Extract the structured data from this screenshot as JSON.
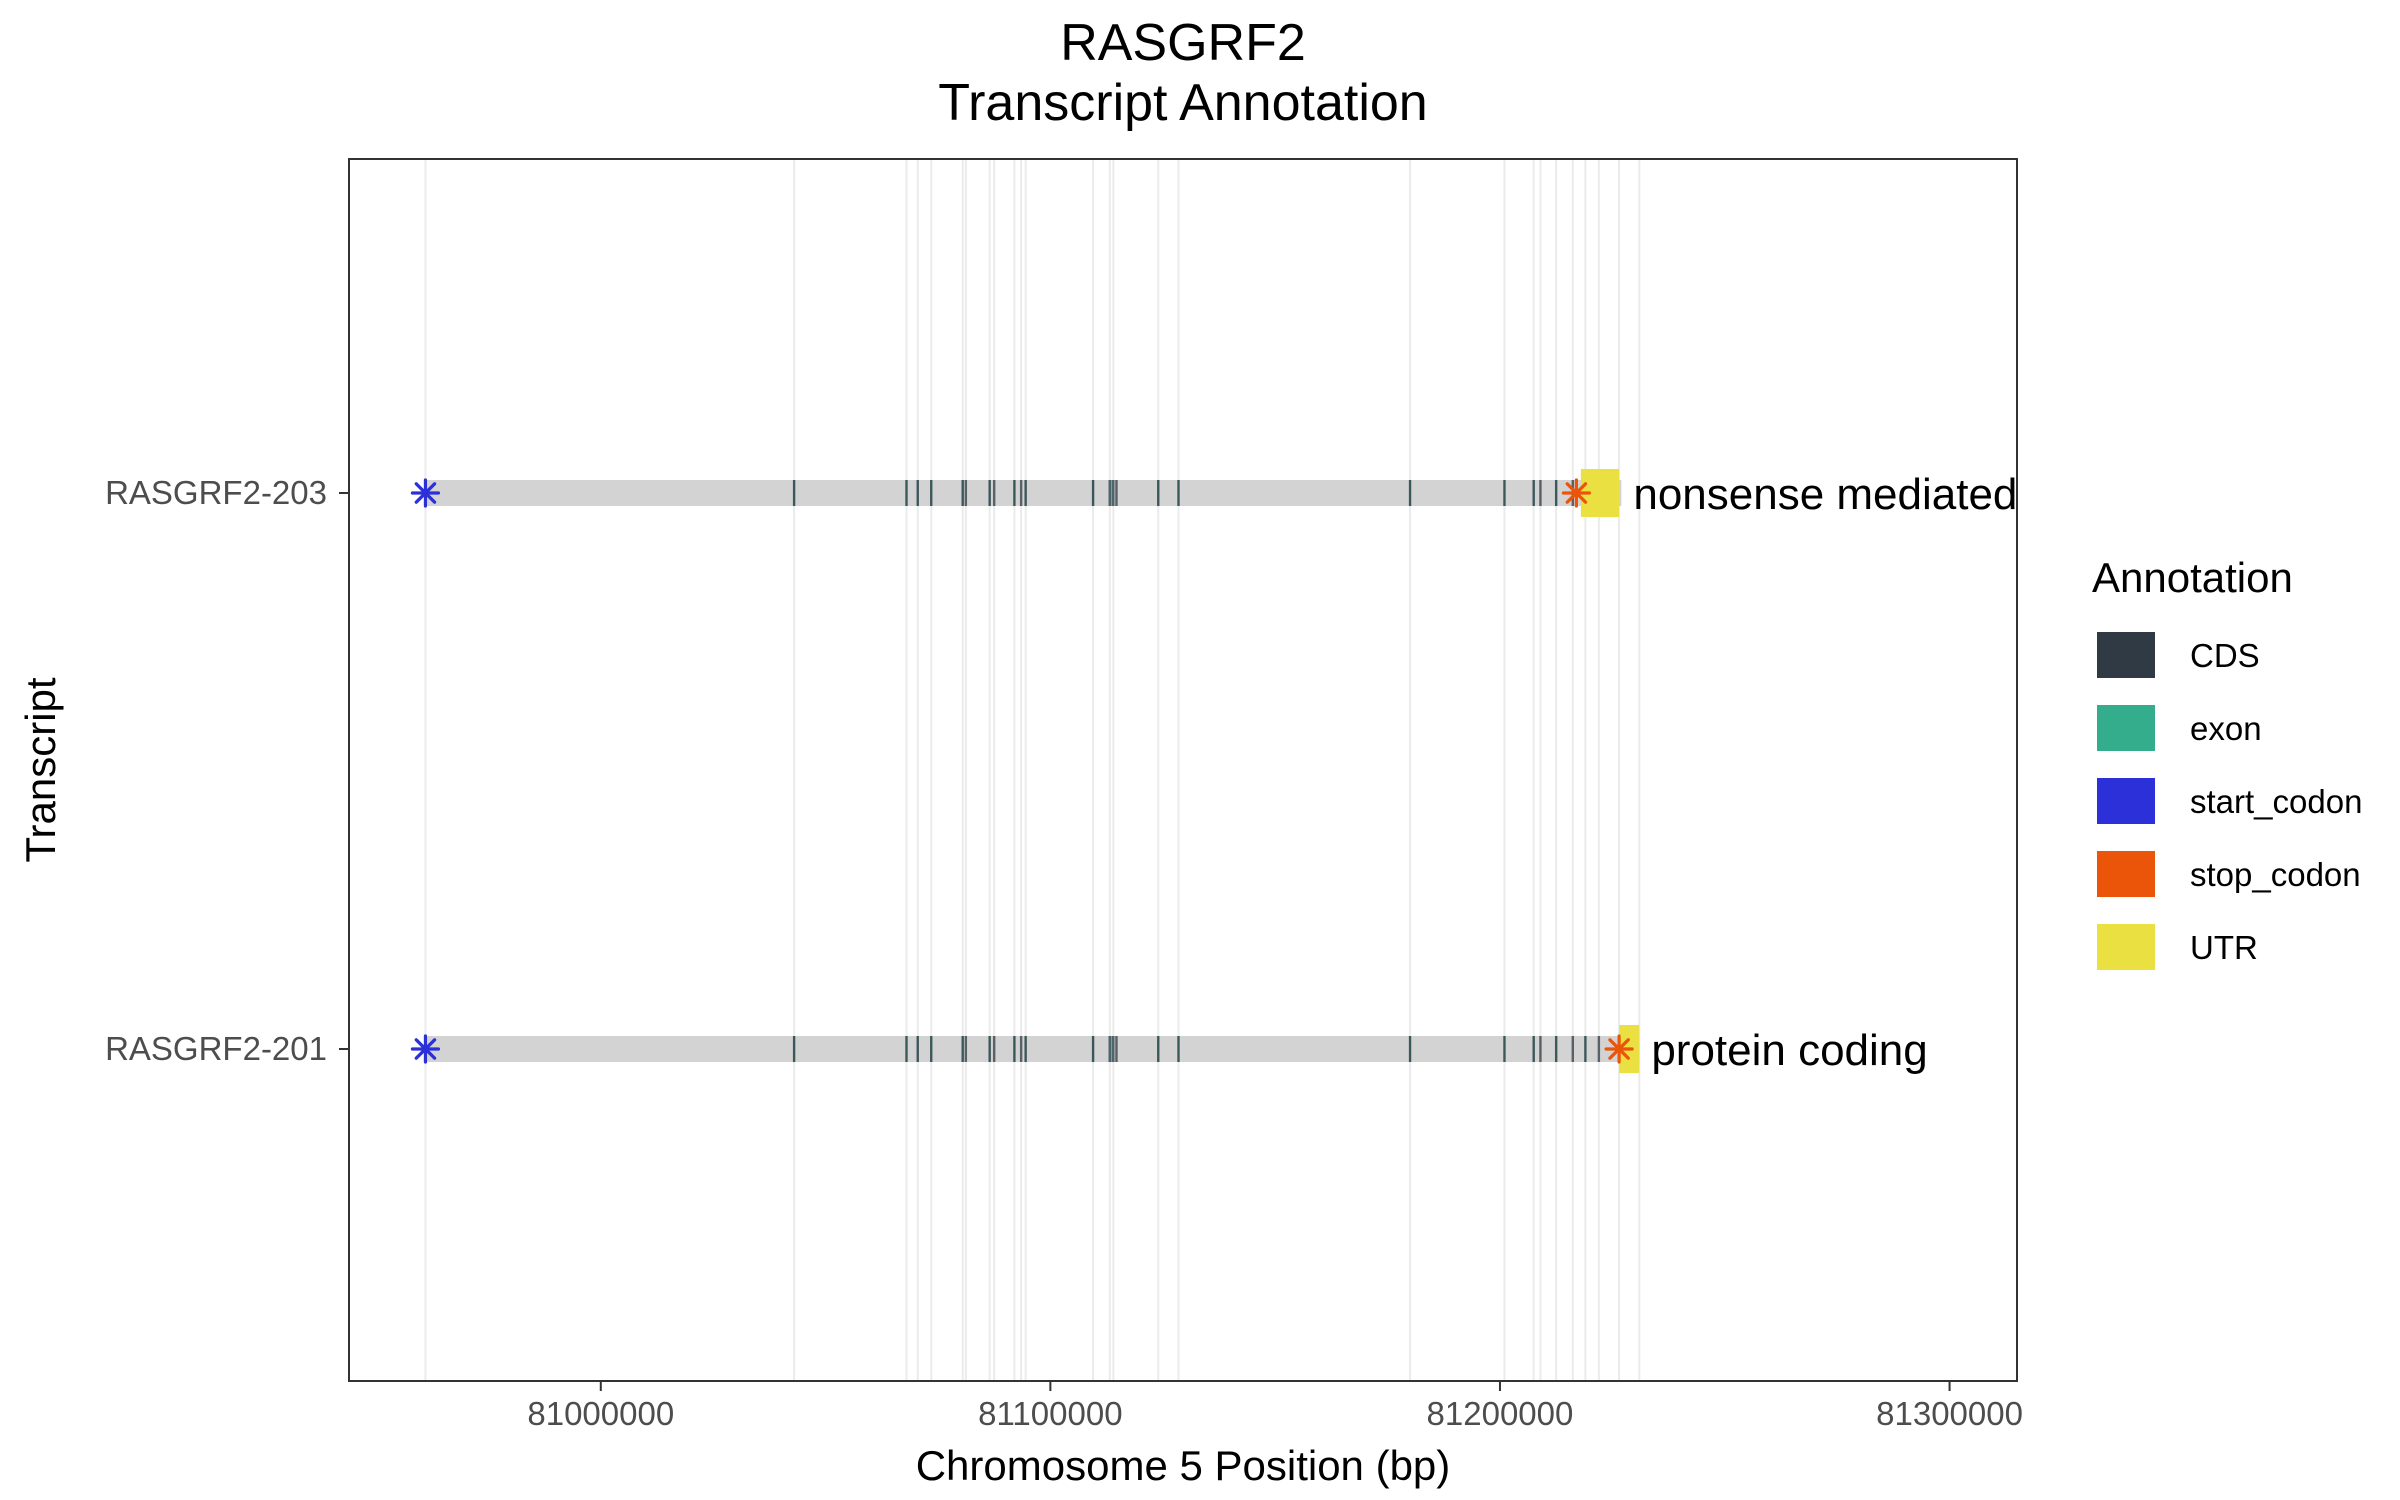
{
  "chart_data": {
    "type": "gene-track",
    "title": "RASGRF2",
    "subtitle": "Transcript Annotation",
    "xlabel": "Chromosome 5 Position (bp)",
    "ylabel": "Transcript",
    "xlim": [
      80944000,
      81315000
    ],
    "x_ticks": [
      "81000000",
      "81100000",
      "81200000",
      "81300000"
    ],
    "x_tick_values": [
      81000000,
      81100000,
      81200000,
      81300000
    ],
    "grid": "vertical lines at feature positions",
    "transcripts": [
      {
        "name": "RASGRF2-203",
        "biotype": "nonsense mediated decay",
        "start": 80961000,
        "end": 81227000,
        "cds": [
          80961000,
          81043000,
          81068000,
          81070500,
          81073500,
          81080500,
          81081200,
          81086500,
          81087500,
          81092000,
          81093500,
          81094500,
          81109500,
          81113200,
          81114000,
          81114700,
          81124000,
          81128500,
          81180000,
          81201000,
          81207500,
          81209000,
          81212500,
          81216200
        ],
        "exon": [
          80961000,
          81043000,
          81068000,
          81070500,
          81073500,
          81080500,
          81086500,
          81092000,
          81094500,
          81109500,
          81113600,
          81124000,
          81128500,
          81180000,
          81201000,
          81207500,
          81212500
        ],
        "utr": [
          [
            81218000,
            81226500
          ]
        ],
        "start_codon": 80961000,
        "stop_codon": 81217000
      },
      {
        "name": "RASGRF2-201",
        "biotype": "protein coding",
        "start": 80961000,
        "end": 81231000,
        "cds": [
          80961000,
          81043000,
          81068000,
          81070500,
          81073500,
          81080500,
          81081200,
          81086500,
          81087500,
          81092000,
          81093500,
          81094500,
          81109500,
          81113200,
          81114000,
          81114700,
          81124000,
          81128500,
          81180000,
          81201000,
          81207500,
          81209000,
          81212500,
          81216200,
          81219000,
          81222000
        ],
        "exon": [
          80961000,
          81043000,
          81068000,
          81070500,
          81073500,
          81080500,
          81086500,
          81092000,
          81094500,
          81109500,
          81113600,
          81124000,
          81128500,
          81180000,
          81201000,
          81207500,
          81212500,
          81219000
        ],
        "utr": [
          [
            81226500,
            81231000
          ]
        ],
        "start_codon": 80961000,
        "stop_codon": 81226500
      }
    ],
    "gridlines_x": [
      80961000,
      81043000,
      81068000,
      81070500,
      81073500,
      81080500,
      81081200,
      81086500,
      81087500,
      81092000,
      81093500,
      81094500,
      81109500,
      81113200,
      81114000,
      81124000,
      81128500,
      81180000,
      81201000,
      81207500,
      81209000,
      81212500,
      81216200,
      81219000,
      81222000,
      81226500,
      81231000
    ],
    "legend": {
      "title": "Annotation",
      "placement": "right",
      "items": [
        {
          "label": "CDS",
          "color": "#2f3a44"
        },
        {
          "label": "exon",
          "color": "#33ad8b"
        },
        {
          "label": "start_codon",
          "color": "#2b30d9"
        },
        {
          "label": "stop_codon",
          "color": "#ea5509"
        },
        {
          "label": "UTR",
          "color": "#eae042"
        }
      ]
    },
    "colors": {
      "track": "#d3d3d3",
      "grid": "#ebebeb",
      "panel_border": "#333333"
    }
  }
}
